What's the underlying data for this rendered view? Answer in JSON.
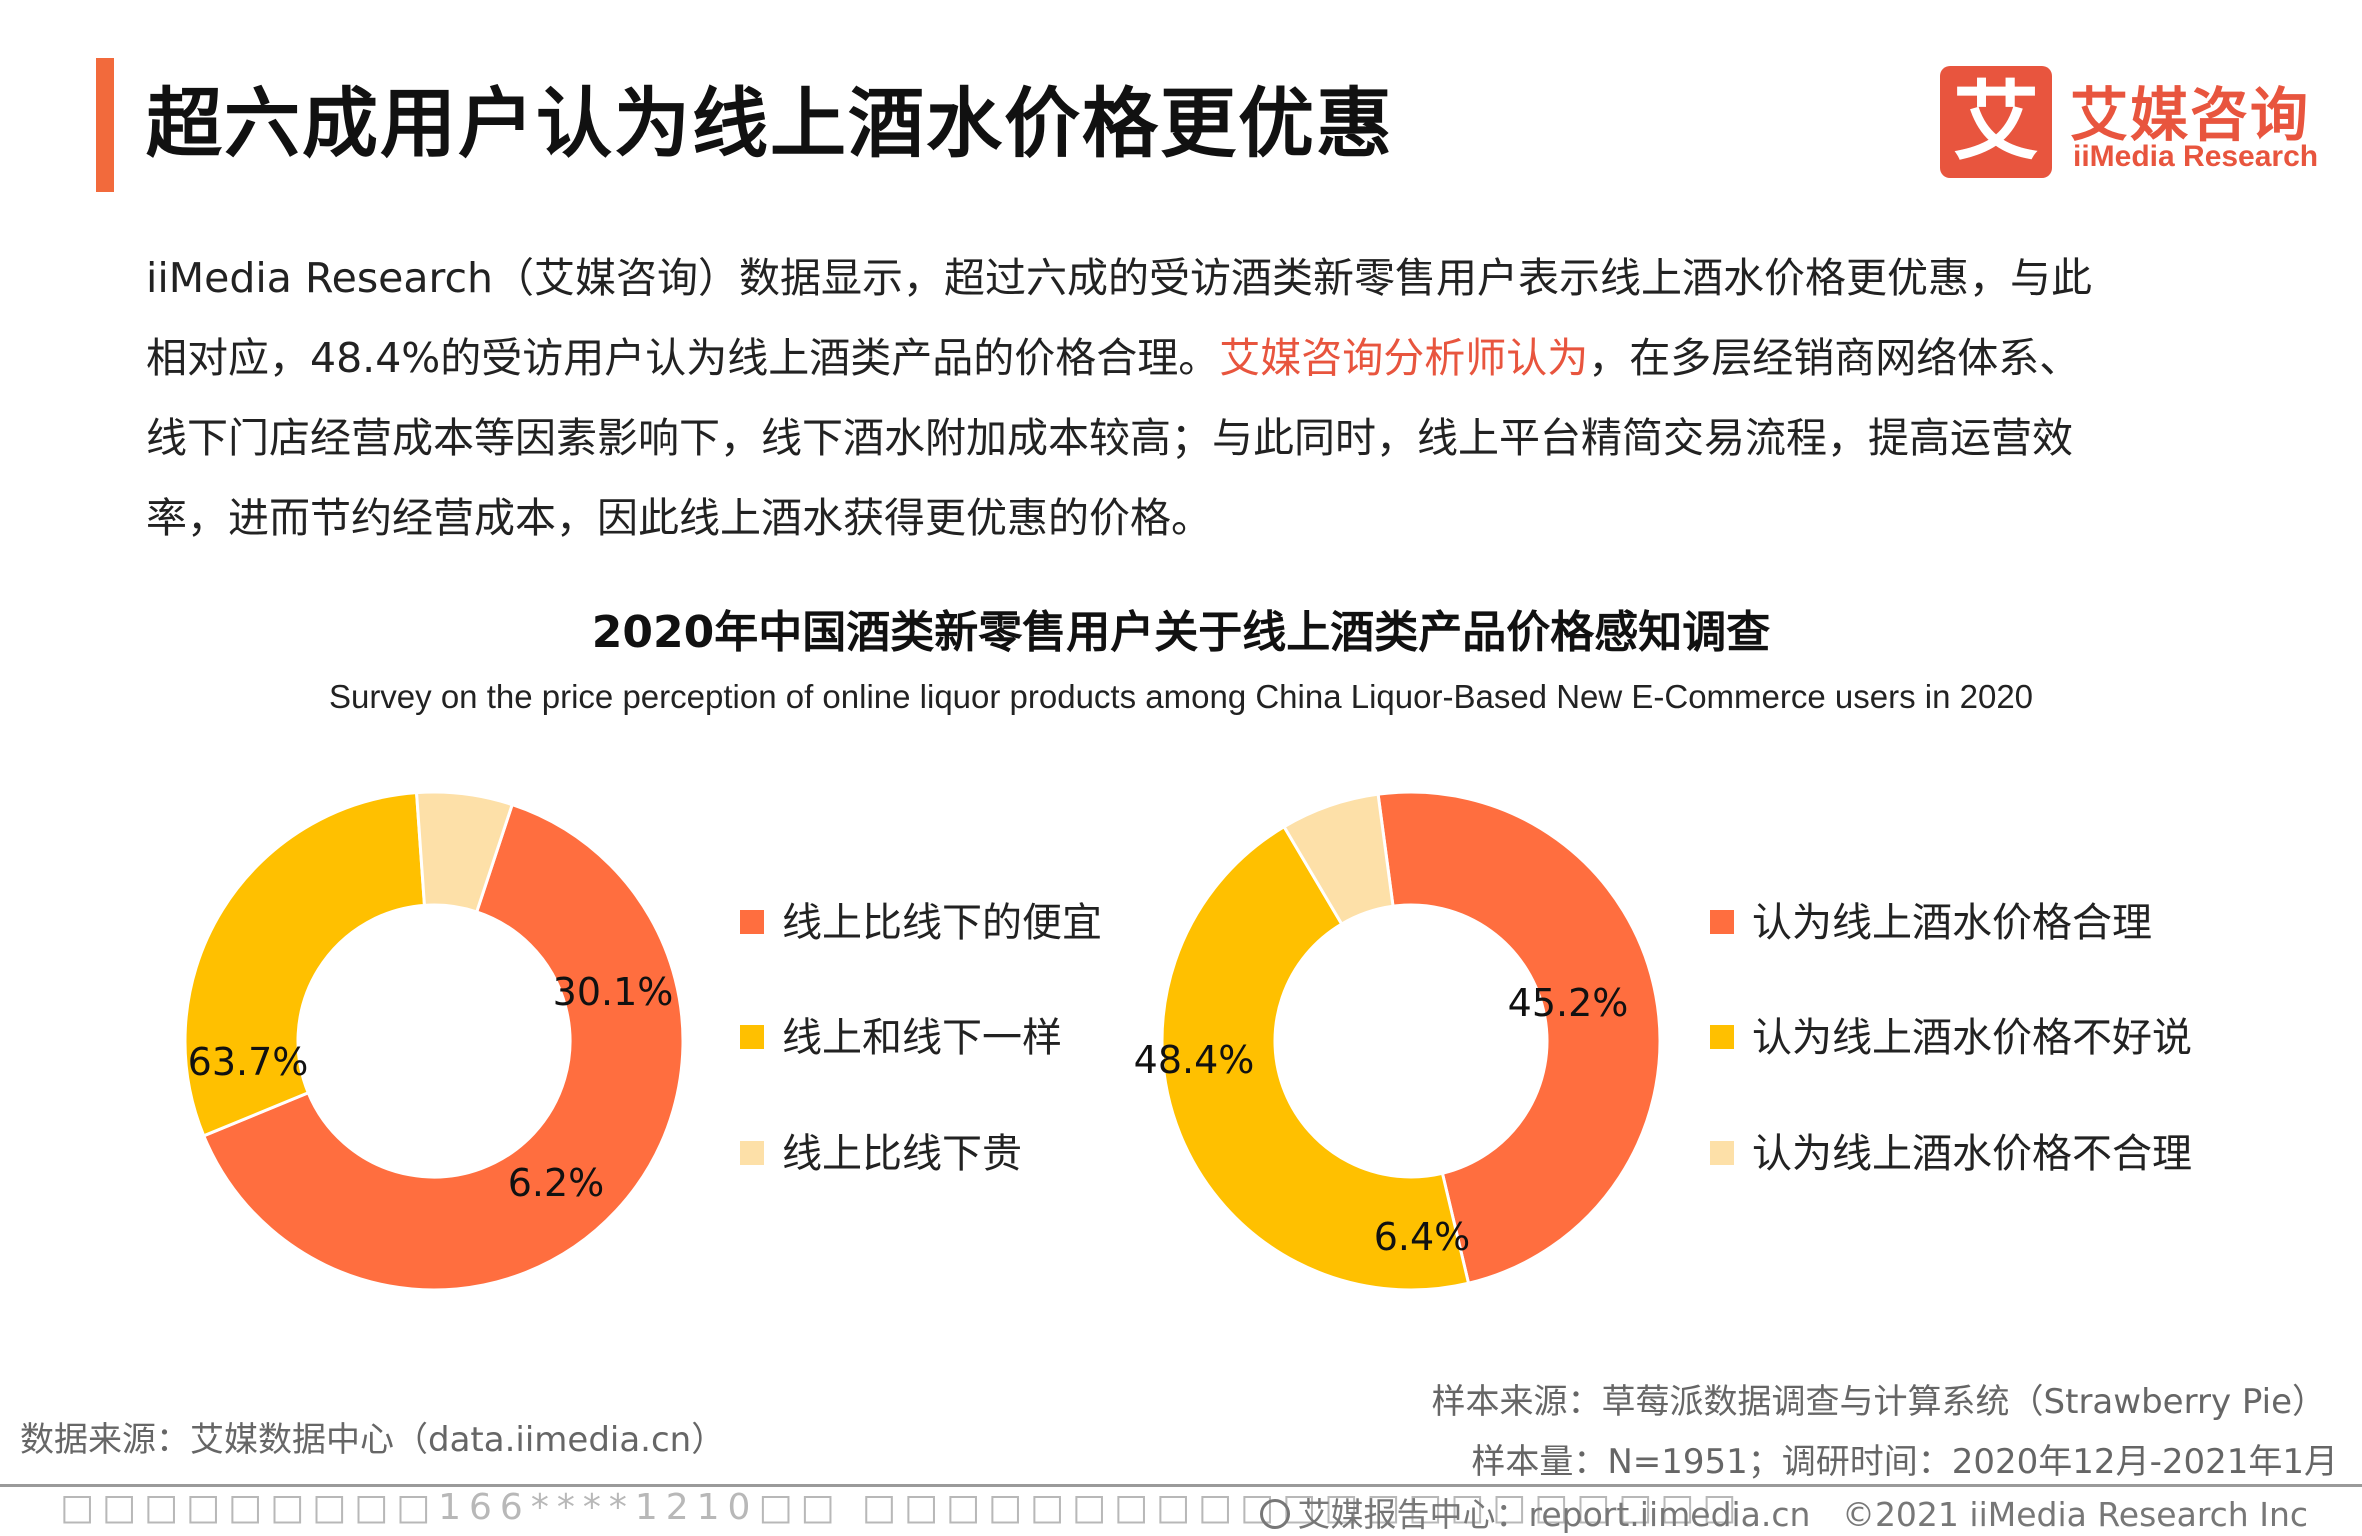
{
  "title": "超六成用户认为线上酒水价格更优惠",
  "logo": {
    "cn": "艾媒咨询",
    "en": "iiMedia Research",
    "mark": "艾"
  },
  "paragraph": {
    "line1": "iiMedia Research（艾媒咨询）数据显示，超过六成的受访酒类新零售用户表示线上酒水价格更优惠，与此",
    "line2_pre": "相对应，48.4%的受访用户认为线上酒类产品的价格合理。",
    "line2_highlight": "艾媒咨询分析师认为",
    "line2_post": "，在多层经销商网络体系、",
    "line3": "线下门店经营成本等因素影响下，线下酒水附加成本较高；与此同时，线上平台精简交易流程，提高运营效",
    "line4": "率，进而节约经营成本，因此线上酒水获得更优惠的价格。"
  },
  "chart_data": [
    {
      "type": "pie",
      "title": "2020年中国酒类新零售用户关于线上酒类产品价格感知调查",
      "subtitle": "Survey on the price perception of online liquor products among China Liquor-Based New E-Commerce users in 2020",
      "categories": [
        "线上比线下的便宜",
        "线上和线下一样",
        "线上比线下贵"
      ],
      "values": [
        63.7,
        30.1,
        6.2
      ],
      "labels": [
        "63.7%",
        "30.1%",
        "6.2%"
      ],
      "colors": [
        "#ff6e3f",
        "#ffc000",
        "#fde0a8"
      ],
      "donut": true,
      "legend": "right"
    },
    {
      "type": "pie",
      "categories": [
        "认为线上酒水价格合理",
        "认为线上酒水价格不好说",
        "认为线上酒水价格不合理"
      ],
      "values": [
        48.4,
        45.2,
        6.4
      ],
      "labels": [
        "48.4%",
        "45.2%",
        "6.4%"
      ],
      "colors": [
        "#ff6e3f",
        "#ffc000",
        "#fde0a8"
      ],
      "donut": true,
      "legend": "right"
    }
  ],
  "footer": {
    "data_source": "数据来源：艾媒数据中心（data.iimedia.cn）",
    "sample_source": "样本来源：草莓派数据调查与计算系统（Strawberry Pie）",
    "sample_size": "样本量：N=1951；调研时间：2020年12月-2021年1月",
    "watermark": "□□□□□□□□□166****1210□□ □□□□□□□□□□□□□□□□□□□□□",
    "report_center": "艾媒报告中心：report.iimedia.cn",
    "copyright": "©2021  iiMedia Research  Inc"
  }
}
